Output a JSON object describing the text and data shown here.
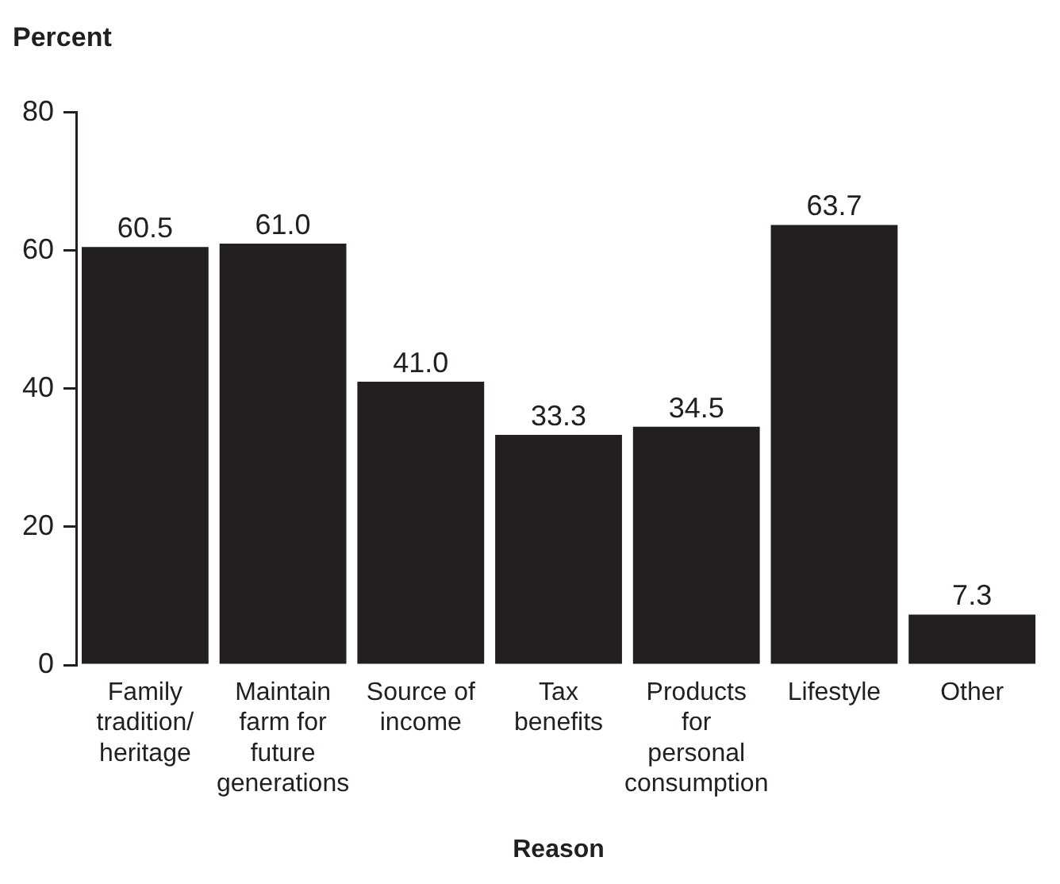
{
  "chart_data": {
    "type": "bar",
    "ylabel": "Percent",
    "xlabel": "Reason",
    "categories": [
      "Family tradition/ heritage",
      "Maintain farm for future generations",
      "Source of income",
      "Tax benefits",
      "Products for personal consumption",
      "Lifestyle",
      "Other"
    ],
    "values": [
      60.5,
      61.0,
      41.0,
      33.3,
      34.5,
      63.7,
      7.3
    ],
    "value_labels": [
      "60.5",
      "61.0",
      "41.0",
      "33.3",
      "34.5",
      "63.7",
      "7.3"
    ],
    "color": "#231f20",
    "ylim": [
      0,
      80
    ],
    "yticks": [
      0,
      20,
      40,
      60,
      80
    ],
    "grid": false,
    "legend": false
  }
}
